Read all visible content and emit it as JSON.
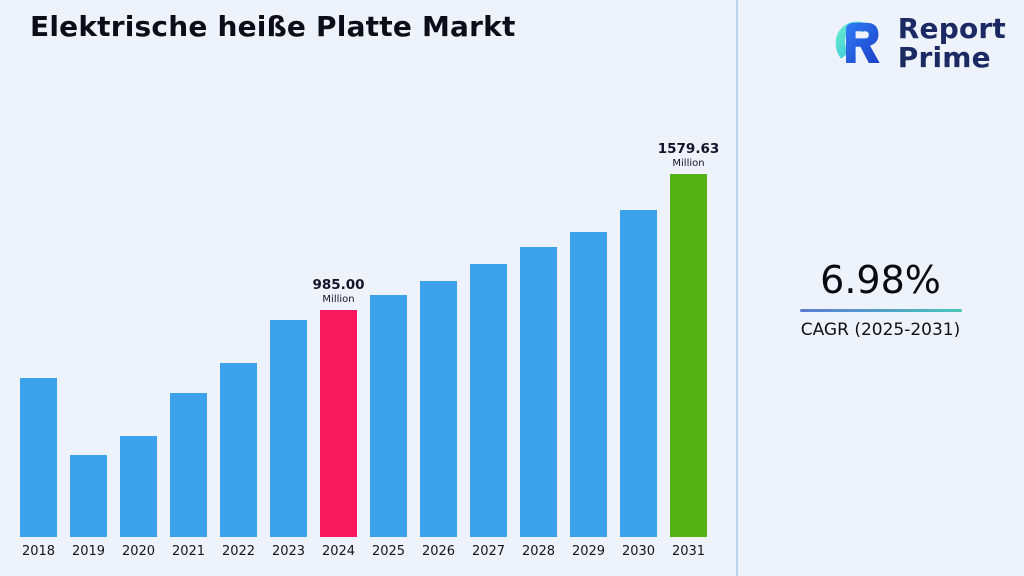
{
  "title": "Elektrische heiße Platte Markt",
  "logo": {
    "line1": "Report",
    "line2": "Prime"
  },
  "cagr": {
    "value": "6.98%",
    "label": "CAGR (2025-2031)"
  },
  "chart_data": {
    "type": "bar",
    "title": "Elektrische heiße Platte Markt",
    "categories": [
      "2018",
      "2019",
      "2020",
      "2021",
      "2022",
      "2023",
      "2024",
      "2025",
      "2026",
      "2027",
      "2028",
      "2029",
      "2030",
      "2031"
    ],
    "values": [
      693,
      356,
      440,
      624,
      755,
      943,
      985,
      1054,
      1115,
      1186,
      1259,
      1325,
      1422,
      1579.63
    ],
    "unit": "Million",
    "xlabel": "",
    "ylabel": "",
    "ylim": [
      0,
      2000
    ],
    "grid": false,
    "legend": false,
    "bar_colors": {
      "default": "#3da2ec",
      "2024": "#f8195d",
      "2031": "#54b214"
    },
    "annotations": [
      {
        "category": "2024",
        "value_label": "985.00",
        "unit_label": "Million"
      },
      {
        "category": "2031",
        "value_label": "1579.63",
        "unit_label": "Million"
      }
    ]
  },
  "colors": {
    "background": "#edf2fb",
    "divider": "#bcd3f0",
    "logo_navy": "#1b2a63",
    "gradient_start": "#5b7bd5",
    "gradient_end": "#49c6b8"
  }
}
